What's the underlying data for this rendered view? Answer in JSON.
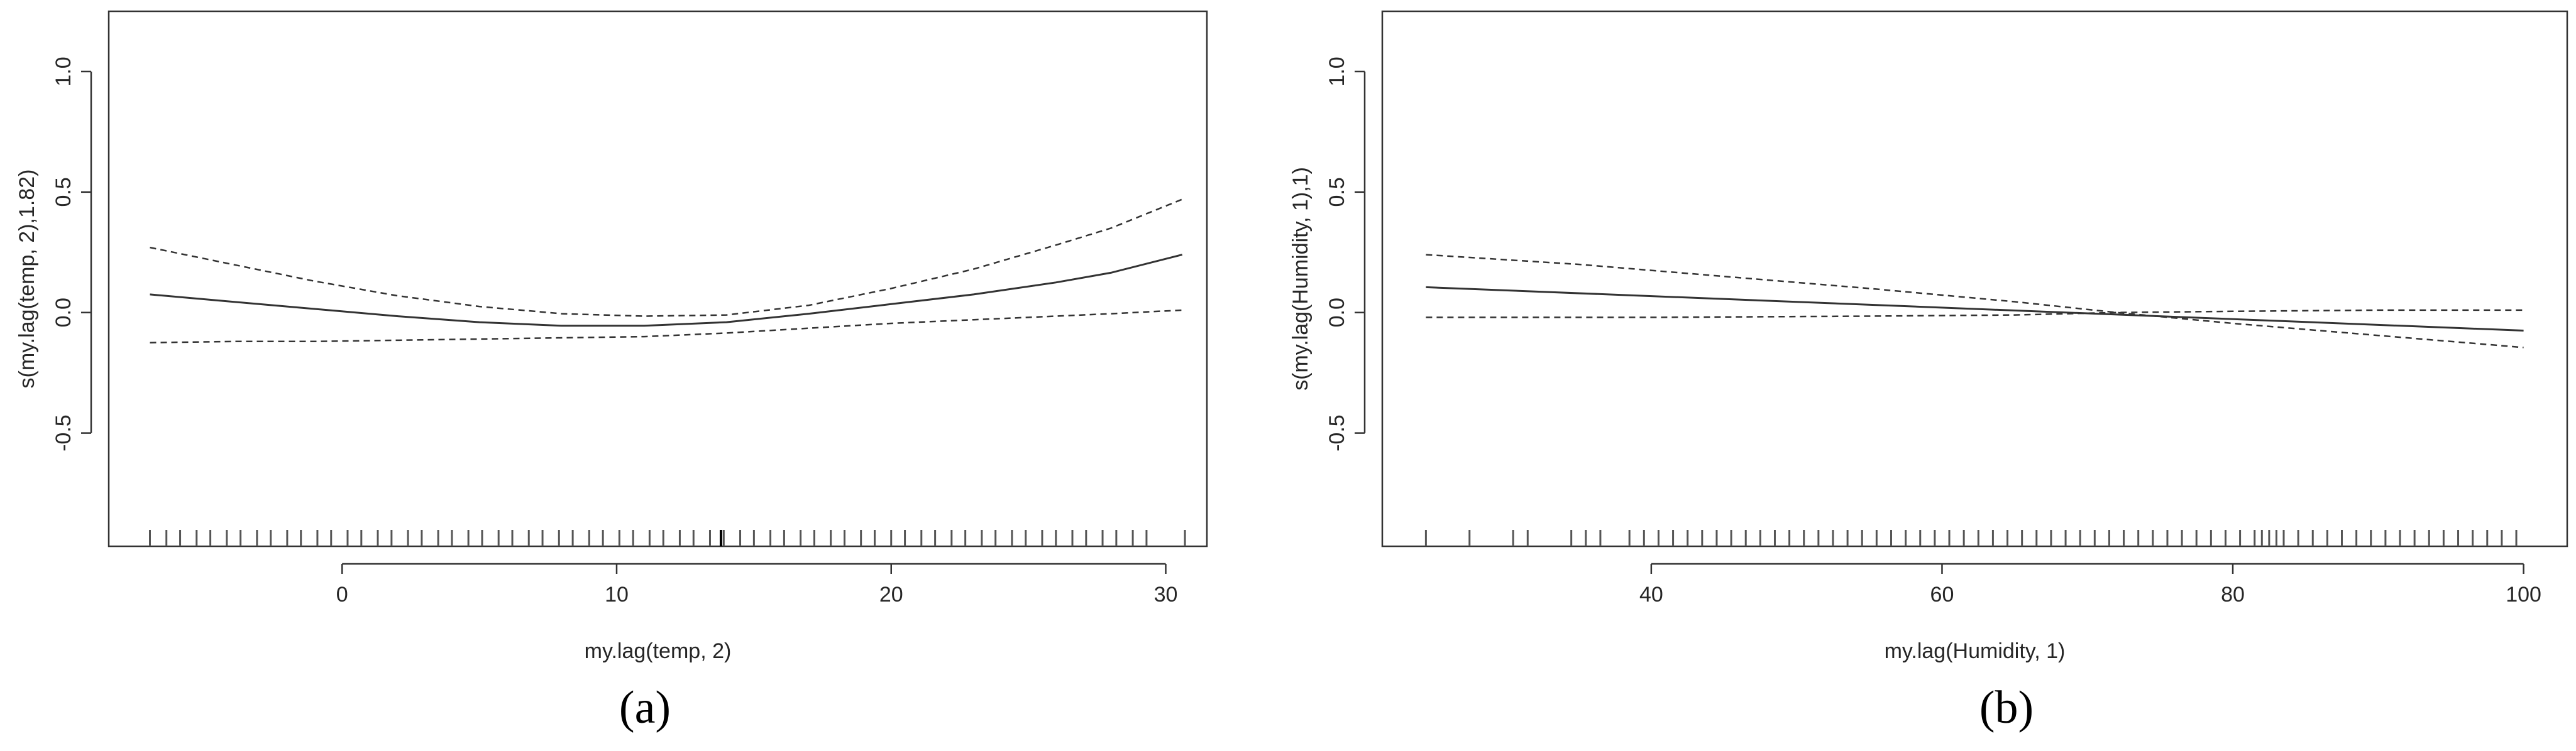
{
  "chart_data": [
    {
      "type": "line",
      "panel_label": "(a)",
      "xlabel": "my.lag(temp, 2)",
      "ylabel": "s(my.lag(temp, 2),1.82)",
      "xlim": [
        -8.5,
        31.5
      ],
      "ylim": [
        -0.97,
        1.25
      ],
      "x_ticks": [
        0,
        10,
        20,
        30
      ],
      "y_ticks": [
        -0.5,
        0.0,
        0.5,
        1.0
      ],
      "y_tick_labels": [
        "-0.5",
        "0.0",
        "0.5",
        "1.0"
      ],
      "grid": false,
      "series": [
        {
          "role": "smooth-estimate",
          "line_style": "solid",
          "x": [
            -7.0,
            -4,
            -1,
            2,
            5,
            8,
            11,
            14,
            17,
            20,
            23,
            26,
            28,
            30.6
          ],
          "values": [
            0.075,
            0.045,
            0.015,
            -0.015,
            -0.04,
            -0.055,
            -0.055,
            -0.04,
            -0.005,
            0.035,
            0.075,
            0.125,
            0.165,
            0.24
          ]
        },
        {
          "role": "upper-confidence-bound",
          "line_style": "dashed",
          "x": [
            -7.0,
            -4,
            -1,
            2,
            5,
            8,
            11,
            14,
            17,
            20,
            23,
            26,
            28,
            30.6
          ],
          "values": [
            0.27,
            0.2,
            0.13,
            0.07,
            0.025,
            -0.005,
            -0.015,
            -0.01,
            0.03,
            0.1,
            0.18,
            0.28,
            0.35,
            0.47
          ]
        },
        {
          "role": "lower-confidence-bound",
          "line_style": "dashed",
          "x": [
            -7.0,
            -4,
            -1,
            2,
            5,
            8,
            11,
            14,
            17,
            20,
            23,
            26,
            28,
            30.6
          ],
          "values": [
            -0.125,
            -0.12,
            -0.12,
            -0.115,
            -0.11,
            -0.105,
            -0.1,
            -0.085,
            -0.065,
            -0.045,
            -0.03,
            -0.015,
            -0.005,
            0.01
          ]
        }
      ],
      "rug": [
        -7.0,
        -6.4,
        -5.9,
        -5.3,
        -4.8,
        -4.2,
        -3.7,
        -3.1,
        -2.6,
        -2.0,
        -1.5,
        -0.9,
        -0.4,
        0.2,
        0.7,
        1.3,
        1.8,
        2.4,
        2.9,
        3.5,
        4.0,
        4.6,
        5.1,
        5.7,
        6.2,
        6.8,
        7.3,
        7.9,
        8.4,
        9.0,
        9.5,
        10.1,
        10.6,
        11.2,
        11.7,
        12.3,
        12.8,
        13.4,
        13.9,
        14.5,
        15.0,
        15.6,
        16.1,
        16.7,
        17.2,
        17.8,
        18.3,
        18.9,
        19.4,
        20.0,
        20.5,
        21.1,
        21.6,
        22.2,
        22.7,
        23.3,
        23.8,
        24.4,
        24.9,
        25.5,
        26.0,
        26.6,
        27.1,
        27.7,
        28.2,
        28.8,
        29.3,
        30.7
      ],
      "rug_highlight": [
        13.8
      ]
    },
    {
      "type": "line",
      "panel_label": "(b)",
      "xlabel": "my.lag(Humidity, 1)",
      "ylabel": "s(my.lag(Humidity, 1),1)",
      "xlim": [
        21.5,
        103.0
      ],
      "ylim": [
        -0.97,
        1.25
      ],
      "x_ticks": [
        40,
        60,
        80,
        100
      ],
      "y_ticks": [
        -0.5,
        0.0,
        0.5,
        1.0
      ],
      "y_tick_labels": [
        "-0.5",
        "0.0",
        "0.5",
        "1.0"
      ],
      "grid": false,
      "series": [
        {
          "role": "smooth-estimate",
          "line_style": "solid",
          "x": [
            24.5,
            100
          ],
          "values": [
            0.105,
            -0.075
          ]
        },
        {
          "role": "upper-confidence-bound",
          "line_style": "dashed",
          "x": [
            24.5,
            35,
            45,
            55,
            65,
            72,
            80,
            90,
            100
          ],
          "values": [
            0.24,
            0.2,
            0.15,
            0.1,
            0.045,
            0.0,
            -0.045,
            -0.095,
            -0.145
          ]
        },
        {
          "role": "lower-confidence-bound",
          "line_style": "dashed",
          "x": [
            24.5,
            40,
            55,
            65,
            72,
            80,
            90,
            100
          ],
          "values": [
            -0.02,
            -0.02,
            -0.015,
            -0.01,
            0.0,
            0.005,
            0.01,
            0.01
          ]
        }
      ],
      "rug": [
        24.5,
        27.5,
        30.5,
        31.5,
        34.5,
        35.5,
        36.5,
        38.5,
        39.5,
        40.5,
        41.5,
        42.5,
        43.5,
        44.5,
        45.5,
        46.5,
        47.5,
        48.5,
        49.5,
        50.5,
        51.5,
        52.5,
        53.5,
        54.5,
        55.5,
        56.5,
        57.5,
        58.5,
        59.5,
        60.5,
        61.5,
        62.5,
        63.5,
        64.5,
        65.5,
        66.5,
        67.5,
        68.5,
        69.5,
        70.5,
        71.5,
        72.5,
        73.5,
        74.5,
        75.5,
        76.5,
        77.5,
        78.5,
        79.5,
        80.5,
        81.5,
        82.0,
        82.5,
        83.0,
        83.5,
        84.5,
        85.5,
        86.5,
        87.5,
        88.5,
        89.5,
        90.5,
        91.5,
        92.5,
        93.5,
        94.5,
        95.5,
        96.5,
        97.5,
        98.5,
        99.5
      ],
      "rug_highlight": []
    }
  ]
}
